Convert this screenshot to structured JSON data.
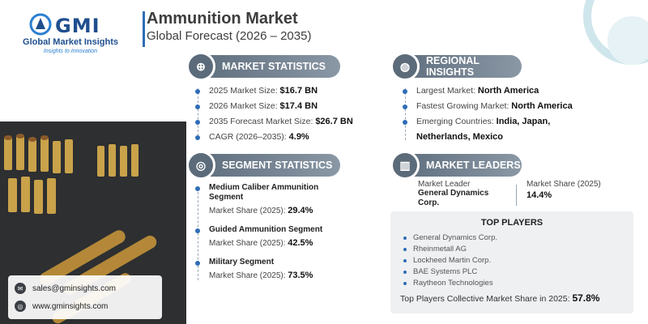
{
  "brand": {
    "name": "GMI",
    "subtitle": "Global Market Insights",
    "tagline": "Insights to Innovation"
  },
  "header": {
    "title": "Ammunition Market",
    "subtitle": "Global Forecast (2026 – 2035)"
  },
  "market_statistics": {
    "heading": "MARKET STATISTICS",
    "items": [
      {
        "label": "2025 Market Size: ",
        "value": "$16.7 BN"
      },
      {
        "label": "2026 Market Size: ",
        "value": "$17.4 BN"
      },
      {
        "label": "2035 Forecast Market Size: ",
        "value": "$26.7 BN"
      },
      {
        "label": "CAGR (2026–2035): ",
        "value": "4.9%"
      }
    ]
  },
  "regional_insights": {
    "heading": "REGIONAL INSIGHTS",
    "items": [
      {
        "label": "Largest Market: ",
        "value": "North America"
      },
      {
        "label": "Fastest Growing Market: ",
        "value": "North America"
      },
      {
        "label": "Emerging Countries: ",
        "value": "India, Japan,",
        "value2": "Netherlands, Mexico"
      }
    ]
  },
  "segment_statistics": {
    "heading": "SEGMENT STATISTICS",
    "items": [
      {
        "name": "Medium Caliber Ammunition",
        "name2": "Segment",
        "share_label": "Market Share (2025): ",
        "share": "29.4%"
      },
      {
        "name": "Guided Ammunition Segment",
        "name2": "",
        "share_label": "Market Share (2025): ",
        "share": "42.5%"
      },
      {
        "name": "Military Segment",
        "name2": "",
        "share_label": "Market Share (2025): ",
        "share": "73.5%"
      }
    ]
  },
  "market_leaders": {
    "heading": "MARKET LEADERS",
    "leader_label": "Market Leader",
    "leader_name": "General Dynamics",
    "leader_name2": "Corp.",
    "share_label": "Market Share (2025)",
    "share_value": "14.4%"
  },
  "top_players": {
    "heading": "TOP PLAYERS",
    "items": [
      "General Dynamics Corp.",
      "Rheinmetall AG",
      "Lockheed Martin Corp.",
      "BAE Systems PLC",
      "Raytheon Technologies"
    ],
    "total_label": "Top Players Collective Market Share in 2025: ",
    "total_value": "57.8%"
  },
  "contact": {
    "email": "sales@gminsights.com",
    "website": "www.gminsights.com"
  },
  "colors": {
    "accent": "#2f6db5",
    "header_bar": "#5c6b7a"
  }
}
